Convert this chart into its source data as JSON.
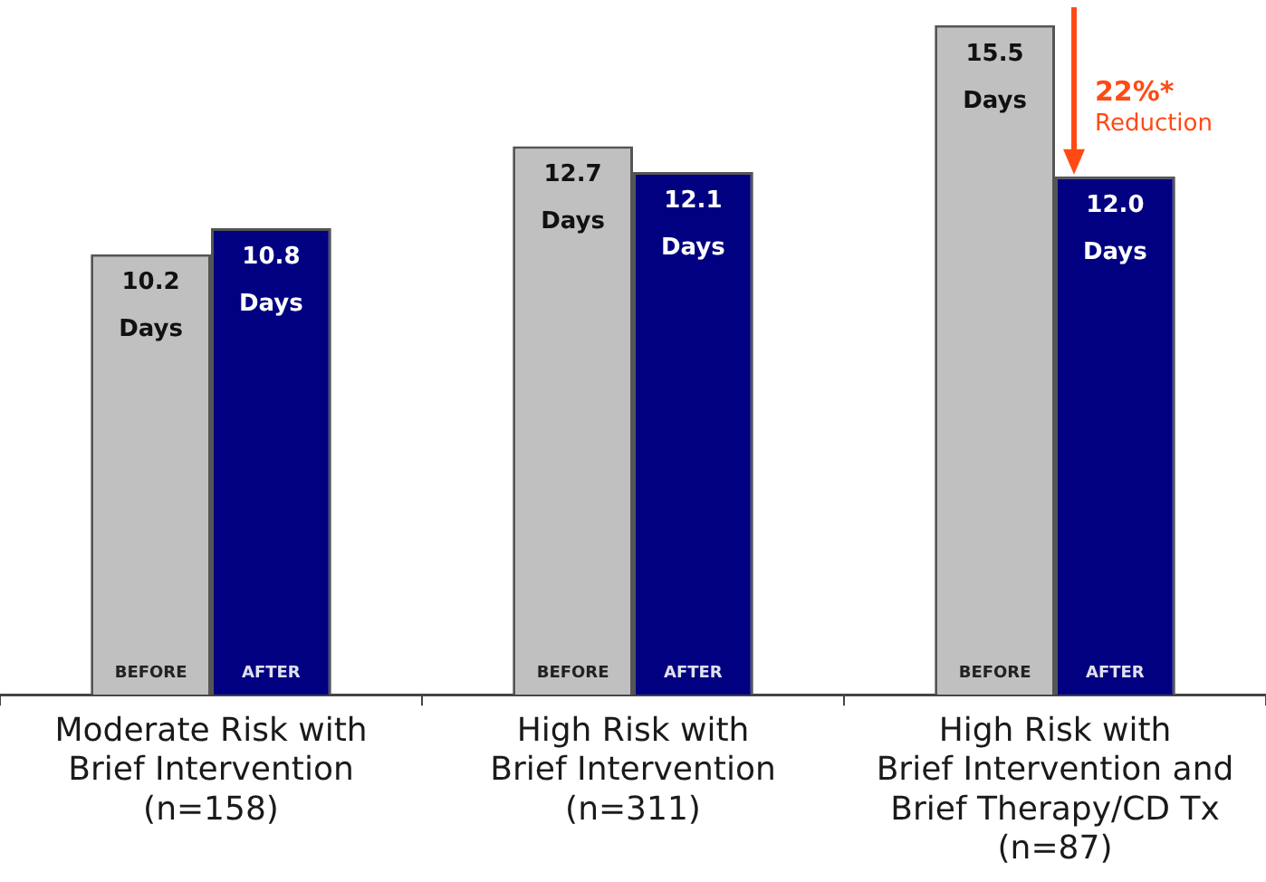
{
  "chart_data": {
    "type": "bar",
    "categories": [
      "Moderate Risk with\nBrief Intervention\n(n=158)",
      "High Risk with\nBrief Intervention\n(n=311)",
      "High Risk with\nBrief Intervention and\nBrief Therapy/CD Tx\n(n=87)"
    ],
    "series": [
      {
        "name": "BEFORE",
        "color": "#c0c0c0",
        "values": [
          10.2,
          12.7,
          15.5
        ],
        "value_labels": [
          "10.2 Days",
          "12.7 Days",
          "15.5 Days"
        ]
      },
      {
        "name": "AFTER",
        "color": "#000080",
        "values": [
          10.8,
          12.1,
          12.0
        ],
        "value_labels": [
          "10.8 Days",
          "12.1 Days",
          "12.0 Days"
        ]
      }
    ],
    "tick_labels": "x",
    "legend": false,
    "annotations": [
      {
        "text": "22%* Reduction",
        "x": "High Risk with\nBrief Intervention and\nBrief Therapy/CD Tx\n(n=87)",
        "y": 12.0
      }
    ]
  }
}
